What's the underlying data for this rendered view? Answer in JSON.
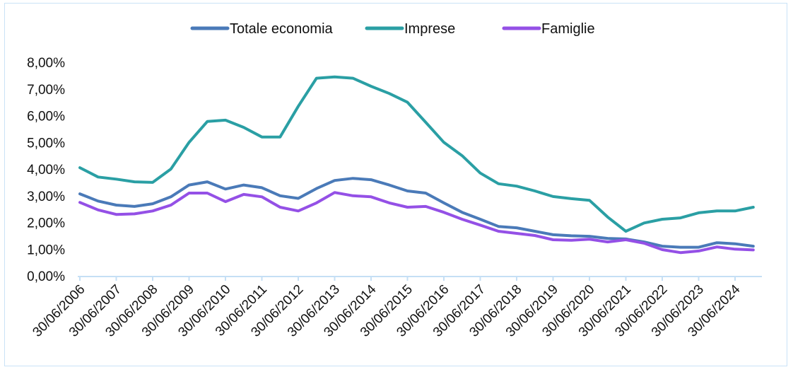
{
  "chart_data": {
    "type": "line",
    "title": "",
    "xlabel": "",
    "ylabel": "",
    "ylim": [
      0,
      8
    ],
    "yticks": [
      "0,00%",
      "1,00%",
      "2,00%",
      "3,00%",
      "4,00%",
      "5,00%",
      "6,00%",
      "7,00%",
      "8,00%"
    ],
    "xticks": [
      "30/06/2006",
      "30/06/2007",
      "30/06/2008",
      "30/06/2009",
      "30/06/2010",
      "30/06/2011",
      "30/06/2012",
      "30/06/2013",
      "30/06/2014",
      "30/06/2015",
      "30/06/2016",
      "30/06/2017",
      "30/06/2018",
      "30/06/2019",
      "30/06/2020",
      "30/06/2021",
      "30/06/2022",
      "30/06/2023",
      "30/06/2024"
    ],
    "grid": false,
    "legend_position": "top-center",
    "x": [
      2006.5,
      2007.0,
      2007.5,
      2008.0,
      2008.5,
      2009.0,
      2009.5,
      2010.0,
      2010.5,
      2011.0,
      2011.5,
      2012.0,
      2012.5,
      2013.0,
      2013.5,
      2014.0,
      2014.5,
      2015.0,
      2015.5,
      2016.0,
      2016.5,
      2017.0,
      2017.5,
      2018.0,
      2018.5,
      2019.0,
      2019.5,
      2020.0,
      2020.5,
      2021.0,
      2021.5,
      2022.0,
      2022.5,
      2023.0,
      2023.5,
      2024.0,
      2024.5,
      2025.0
    ],
    "series": [
      {
        "name": "Totale economia",
        "color": "#4a7ab8",
        "values": [
          3.07,
          2.8,
          2.65,
          2.6,
          2.7,
          2.96,
          3.4,
          3.52,
          3.25,
          3.4,
          3.3,
          3.0,
          2.9,
          3.27,
          3.57,
          3.65,
          3.6,
          3.4,
          3.18,
          3.1,
          2.73,
          2.38,
          2.12,
          1.85,
          1.8,
          1.67,
          1.54,
          1.5,
          1.48,
          1.4,
          1.38,
          1.27,
          1.11,
          1.07,
          1.07,
          1.24,
          1.2,
          1.11
        ]
      },
      {
        "name": "Imprese",
        "color": "#2a9fa4",
        "values": [
          4.05,
          3.7,
          3.62,
          3.52,
          3.5,
          4.0,
          5.0,
          5.78,
          5.83,
          5.56,
          5.2,
          5.2,
          6.35,
          7.4,
          7.45,
          7.4,
          7.1,
          6.83,
          6.5,
          5.75,
          5.0,
          4.5,
          3.85,
          3.45,
          3.36,
          3.18,
          2.97,
          2.89,
          2.83,
          2.2,
          1.67,
          1.98,
          2.12,
          2.17,
          2.36,
          2.43,
          2.43,
          2.57
        ]
      },
      {
        "name": "Famiglie",
        "color": "#9450e6",
        "values": [
          2.75,
          2.47,
          2.3,
          2.32,
          2.43,
          2.65,
          3.1,
          3.1,
          2.78,
          3.05,
          2.96,
          2.57,
          2.43,
          2.73,
          3.12,
          3.0,
          2.96,
          2.73,
          2.57,
          2.6,
          2.38,
          2.12,
          1.9,
          1.67,
          1.59,
          1.51,
          1.35,
          1.33,
          1.37,
          1.27,
          1.35,
          1.22,
          0.98,
          0.87,
          0.93,
          1.08,
          1.0,
          0.97
        ]
      }
    ]
  }
}
